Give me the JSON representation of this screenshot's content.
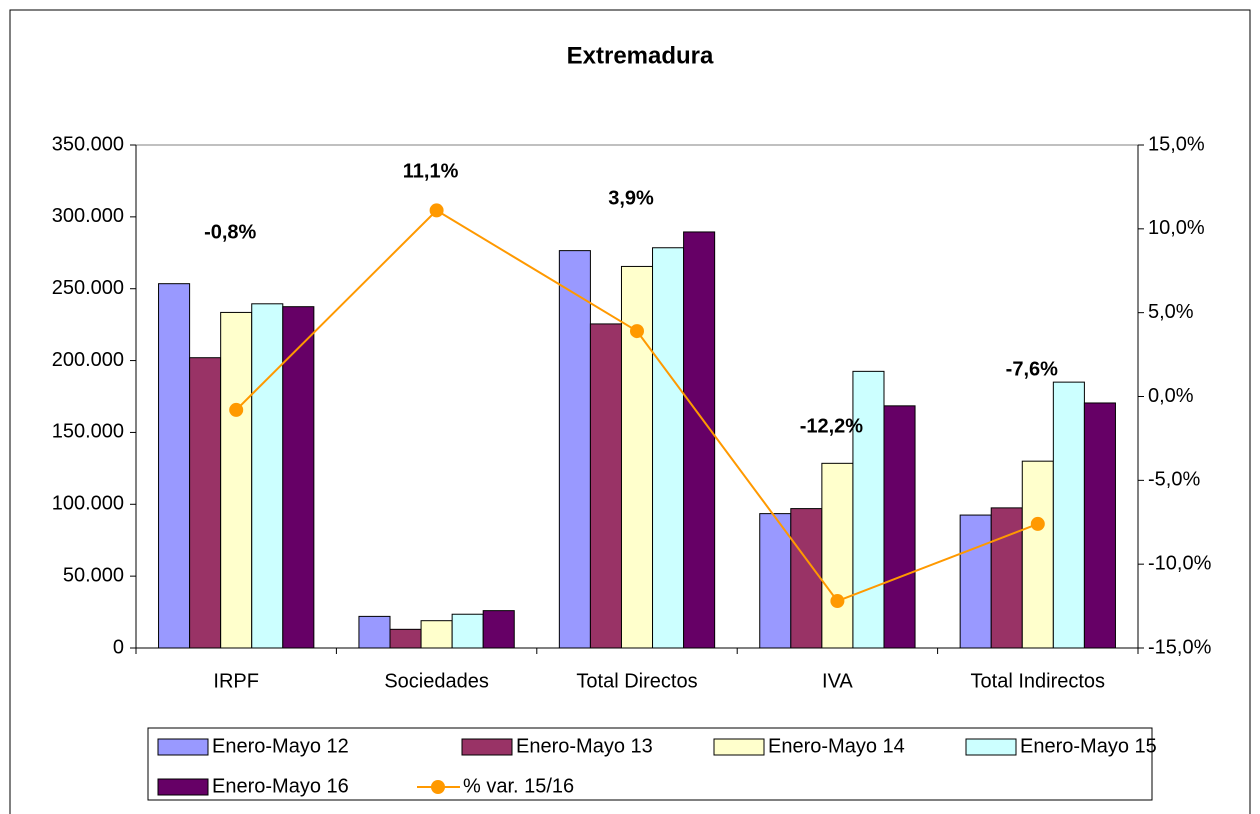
{
  "chart_data": {
    "type": "bar",
    "title": "Extremadura",
    "categories": [
      "IRPF",
      "Sociedades",
      "Total Directos",
      "IVA",
      "Total Indirectos"
    ],
    "series": [
      {
        "name": "Enero-Mayo 12",
        "color": "#9999ff",
        "values": [
          253500,
          22000,
          276500,
          93500,
          92500
        ]
      },
      {
        "name": "Enero-Mayo 13",
        "color": "#993366",
        "values": [
          202000,
          13000,
          225500,
          97000,
          97500
        ]
      },
      {
        "name": "Enero-Mayo 14",
        "color": "#ffffcc",
        "values": [
          233500,
          19000,
          265500,
          128500,
          130000
        ]
      },
      {
        "name": "Enero-Mayo 15",
        "color": "#ccffff",
        "values": [
          239500,
          23500,
          278500,
          192500,
          185000
        ]
      },
      {
        "name": "Enero-Mayo 16",
        "color": "#660066",
        "values": [
          237500,
          26000,
          289500,
          168500,
          170500
        ]
      },
      {
        "name": "% var. 15/16",
        "color": "#ff9900",
        "type": "line",
        "axis": "y2",
        "values": [
          -0.8,
          11.1,
          3.9,
          -12.2,
          -7.6
        ],
        "value_labels": [
          "-0,8%",
          "11,1%",
          "3,9%",
          "-12,2%",
          "-7,6%"
        ]
      }
    ],
    "ylim": [
      0,
      350000
    ],
    "yticks": [
      0,
      {
        "value": 50000,
        "label": "50.000"
      },
      {
        "value": 100000,
        "label": "100.000"
      },
      {
        "value": 150000,
        "label": "150.000"
      },
      {
        "value": 200000,
        "label": "200.000"
      },
      {
        "value": 250000,
        "label": "250.000"
      },
      {
        "value": 300000,
        "label": "300.000"
      },
      {
        "value": 350000,
        "label": "350.000"
      }
    ],
    "y2lim": [
      -15,
      15
    ],
    "y2ticks": [
      {
        "value": -15,
        "label": "-15,0%"
      },
      {
        "value": -10,
        "label": "-10,0%"
      },
      {
        "value": -5,
        "label": "-5,0%"
      },
      {
        "value": 0,
        "label": "0,0%"
      },
      {
        "value": 5,
        "label": "5,0%"
      },
      {
        "value": 10,
        "label": "10,0%"
      },
      {
        "value": 15,
        "label": "15,0%"
      }
    ],
    "legend": "bottom"
  }
}
